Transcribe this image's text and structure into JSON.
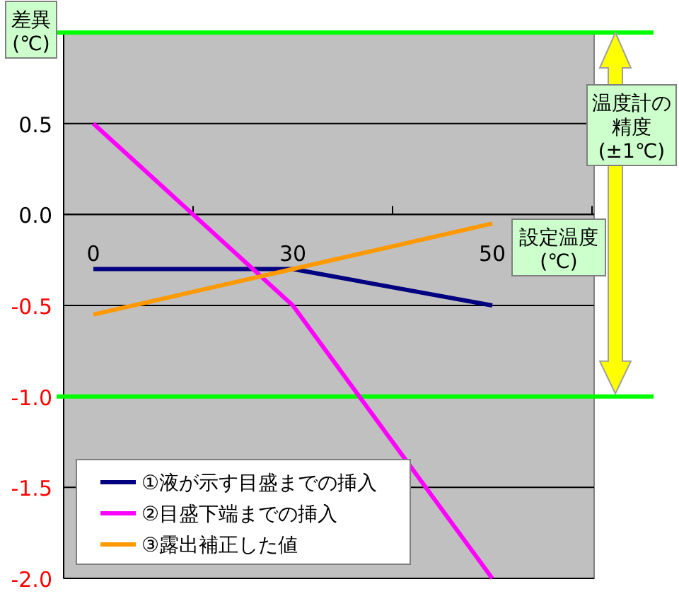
{
  "chart_data": {
    "type": "line",
    "xlabel": "設定温度(℃)",
    "ylabel": "差異(℃)",
    "categories": [
      "0",
      "30",
      "50"
    ],
    "series": [
      {
        "name": "①液が示す目盛までの挿入",
        "color": "#000080",
        "values": [
          -0.3,
          -0.3,
          -0.5
        ]
      },
      {
        "name": "②目盛下端までの挿入",
        "color": "#ff00ff",
        "values": [
          0.5,
          -0.5,
          -2.0
        ]
      },
      {
        "name": "③露出補正した値",
        "color": "#ff9900",
        "values": [
          -0.55,
          -0.3,
          -0.05
        ]
      }
    ],
    "ylim": [
      -2,
      1
    ],
    "yticks": [
      {
        "value": -2,
        "label": "-2.0"
      },
      {
        "value": -1.5,
        "label": "-1.5"
      },
      {
        "value": -1,
        "label": "-1.0"
      },
      {
        "value": -0.5,
        "label": "-0.5"
      },
      {
        "value": 0,
        "label": "0.0"
      },
      {
        "value": 0.5,
        "label": "0.5"
      }
    ],
    "grid": "y",
    "legend": "bottom left",
    "marker": "none",
    "line_style": "solid",
    "ref_lines": [
      {
        "axis": "y",
        "value": 1,
        "color": "#00ff00"
      },
      {
        "axis": "y",
        "value": -1,
        "color": "#00ff00"
      }
    ],
    "annotations": [
      "温度計の精度(±1℃)"
    ]
  }
}
